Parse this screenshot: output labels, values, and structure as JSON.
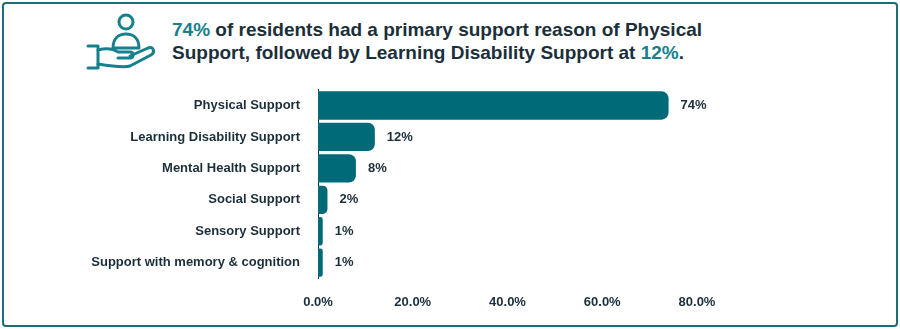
{
  "chart_data": {
    "type": "bar",
    "orientation": "horizontal",
    "title": "74% of residents had a primary support reason of Physical Support, followed by Learning Disability Support at 12%.",
    "categories": [
      "Physical Support",
      "Learning Disability Support",
      "Mental Health Support",
      "Social Support",
      "Sensory Support",
      "Support with memory & cognition"
    ],
    "values": [
      74,
      12,
      8,
      2,
      1,
      1
    ],
    "value_labels": [
      "74%",
      "12%",
      "8%",
      "2%",
      "1%",
      "1%"
    ],
    "data_labels": true,
    "color": "#006a78",
    "xlim": [
      0,
      80
    ],
    "xticks": [
      {
        "value": 0,
        "label": "0.0%"
      },
      {
        "value": 20,
        "label": "20.0%"
      },
      {
        "value": 40,
        "label": "40.0%"
      },
      {
        "value": 60,
        "label": "60.0%"
      },
      {
        "value": 80,
        "label": "80.0%"
      }
    ],
    "grid": false
  }
}
